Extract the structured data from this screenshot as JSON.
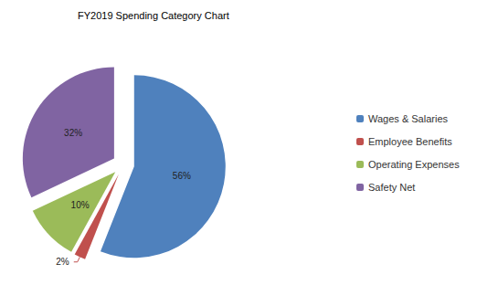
{
  "chart_data": {
    "type": "pie",
    "title": "FY2019 Spending Category Chart",
    "categories": [
      "Wages & Salaries",
      "Employee Benefits",
      "Operating Expenses",
      "Safety Net"
    ],
    "values": [
      56,
      2,
      10,
      32
    ],
    "value_labels": [
      "56%",
      "2%",
      "10%",
      "32%"
    ],
    "colors": [
      "#4f81bd",
      "#c0504d",
      "#9bbb59",
      "#8064a2"
    ],
    "data_labels": true,
    "legend": "right"
  }
}
